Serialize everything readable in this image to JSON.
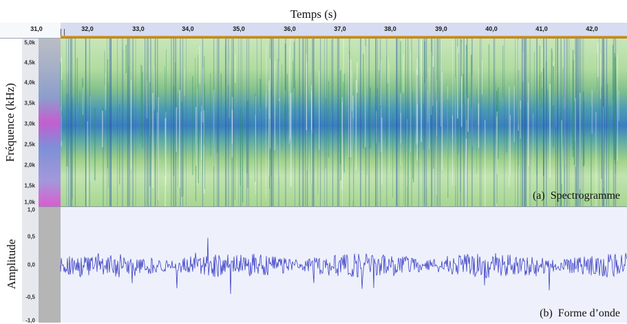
{
  "title": "Temps (s)",
  "freq_axis_title": "Fréquence (kHz)",
  "amp_axis_title": "Amplitude",
  "ruler": {
    "start_label": "31,0",
    "labels": [
      "32,0",
      "33,0",
      "34,0",
      "35,0",
      "36,0",
      "37,0",
      "38,0",
      "39,0",
      "40,0",
      "41,0",
      "42,0"
    ]
  },
  "freq_ticks": [
    "5,0k",
    "4,5k",
    "4,0k",
    "3,5k",
    "3,0k",
    "2,5k",
    "2,0k",
    "1,5k",
    "1,0k"
  ],
  "amp_ticks": [
    "1,0",
    "0,5",
    "0,0",
    "-0,5",
    "-1,0"
  ],
  "spectrogram_caption": "(a)  Spectrogramme",
  "waveform_caption": "(b)  Forme d’onde",
  "colors": {
    "wave": "#3b3fc4",
    "spectro_green": "#9fd08a",
    "spectro_blue": "#2f6cc2",
    "selection_gray": "#b5b5b5",
    "ruler_blue": "#d7dcf0"
  },
  "icons": [
    "selection-marker-icon"
  ]
}
